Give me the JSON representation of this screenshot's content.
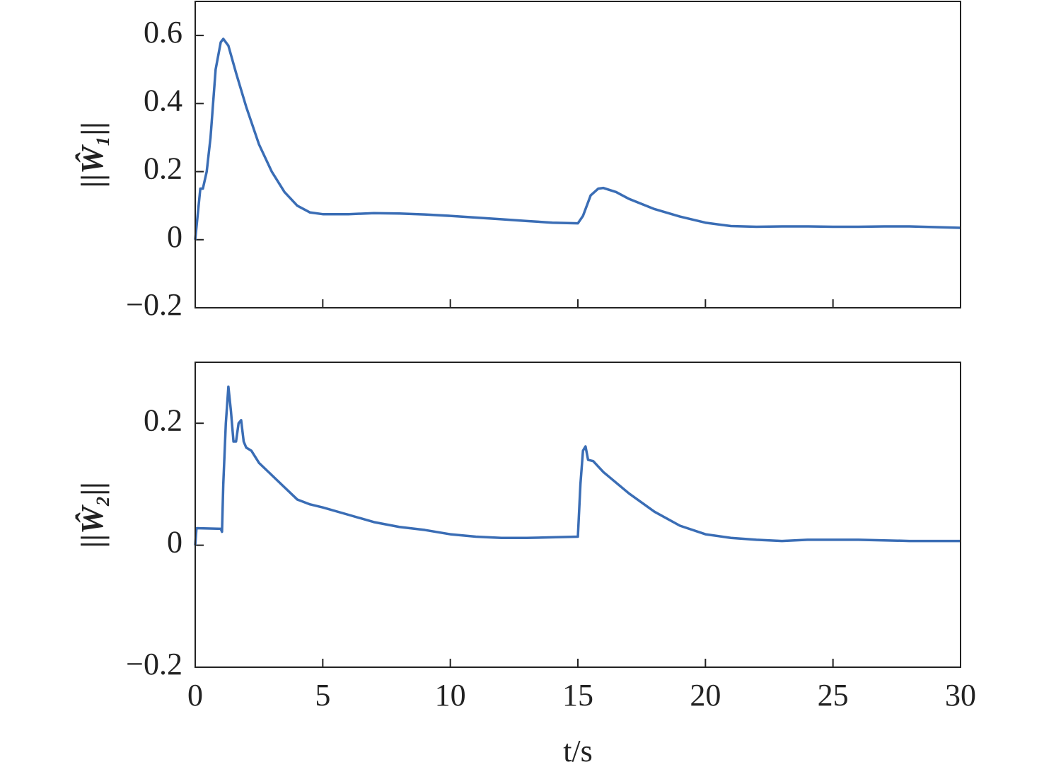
{
  "chart_data": [
    {
      "type": "line",
      "ylabel": "||Ŵ₁||",
      "x": [
        0,
        0.2,
        0.3,
        0.45,
        0.6,
        0.8,
        1.0,
        1.1,
        1.3,
        1.6,
        2.0,
        2.5,
        3.0,
        3.5,
        4.0,
        4.5,
        5,
        6,
        7,
        8,
        9,
        10,
        11,
        12,
        13,
        14,
        15,
        15.2,
        15.5,
        15.8,
        16,
        16.5,
        17,
        18,
        19,
        20,
        21,
        22,
        23,
        24,
        25,
        26,
        27,
        28,
        29,
        30
      ],
      "series": [
        {
          "color": "#3a6db5",
          "values": [
            0,
            0.15,
            0.15,
            0.2,
            0.3,
            0.5,
            0.58,
            0.59,
            0.57,
            0.49,
            0.39,
            0.28,
            0.2,
            0.14,
            0.1,
            0.08,
            0.075,
            0.075,
            0.078,
            0.077,
            0.074,
            0.07,
            0.065,
            0.06,
            0.055,
            0.05,
            0.048,
            0.07,
            0.13,
            0.15,
            0.152,
            0.14,
            0.12,
            0.09,
            0.068,
            0.05,
            0.04,
            0.038,
            0.039,
            0.039,
            0.038,
            0.038,
            0.039,
            0.039,
            0.037,
            0.035
          ]
        }
      ],
      "xlim": [
        0,
        30
      ],
      "xticks": [
        0,
        5,
        10,
        15,
        20,
        25,
        30
      ],
      "ylim": [
        -0.2,
        0.7
      ],
      "yticks": [
        {
          "value": -0.2,
          "label": "−0.2"
        },
        0,
        0.2,
        0.4,
        0.6
      ]
    },
    {
      "type": "line",
      "ylabel": "||Ŵ₂||",
      "xlabel": "t/s",
      "x": [
        0,
        0.05,
        1.0,
        1.05,
        1.1,
        1.2,
        1.3,
        1.4,
        1.5,
        1.6,
        1.7,
        1.8,
        1.9,
        2.0,
        2.2,
        2.5,
        3.0,
        3.5,
        4.0,
        4.5,
        5,
        6,
        7,
        8,
        9,
        10,
        11,
        12,
        13,
        14,
        15,
        15.1,
        15.2,
        15.3,
        15.4,
        15.6,
        16,
        17,
        18,
        19,
        20,
        21,
        22,
        23,
        24,
        25,
        26,
        27,
        28,
        29,
        30
      ],
      "series": [
        {
          "color": "#3a6db5",
          "values": [
            0,
            0.028,
            0.027,
            0.022,
            0.1,
            0.2,
            0.26,
            0.22,
            0.17,
            0.17,
            0.2,
            0.205,
            0.17,
            0.16,
            0.155,
            0.135,
            0.115,
            0.095,
            0.075,
            0.067,
            0.062,
            0.05,
            0.038,
            0.03,
            0.025,
            0.018,
            0.014,
            0.012,
            0.012,
            0.013,
            0.014,
            0.1,
            0.155,
            0.162,
            0.14,
            0.138,
            0.12,
            0.085,
            0.055,
            0.032,
            0.018,
            0.012,
            0.009,
            0.007,
            0.009,
            0.009,
            0.009,
            0.008,
            0.007,
            0.007,
            0.007
          ]
        }
      ],
      "xlim": [
        0,
        30
      ],
      "xticks": [
        0,
        5,
        10,
        15,
        20,
        25,
        30
      ],
      "ylim": [
        -0.2,
        0.3
      ],
      "yticks": [
        {
          "value": -0.2,
          "label": "−0.2"
        },
        0,
        0.2
      ]
    }
  ]
}
